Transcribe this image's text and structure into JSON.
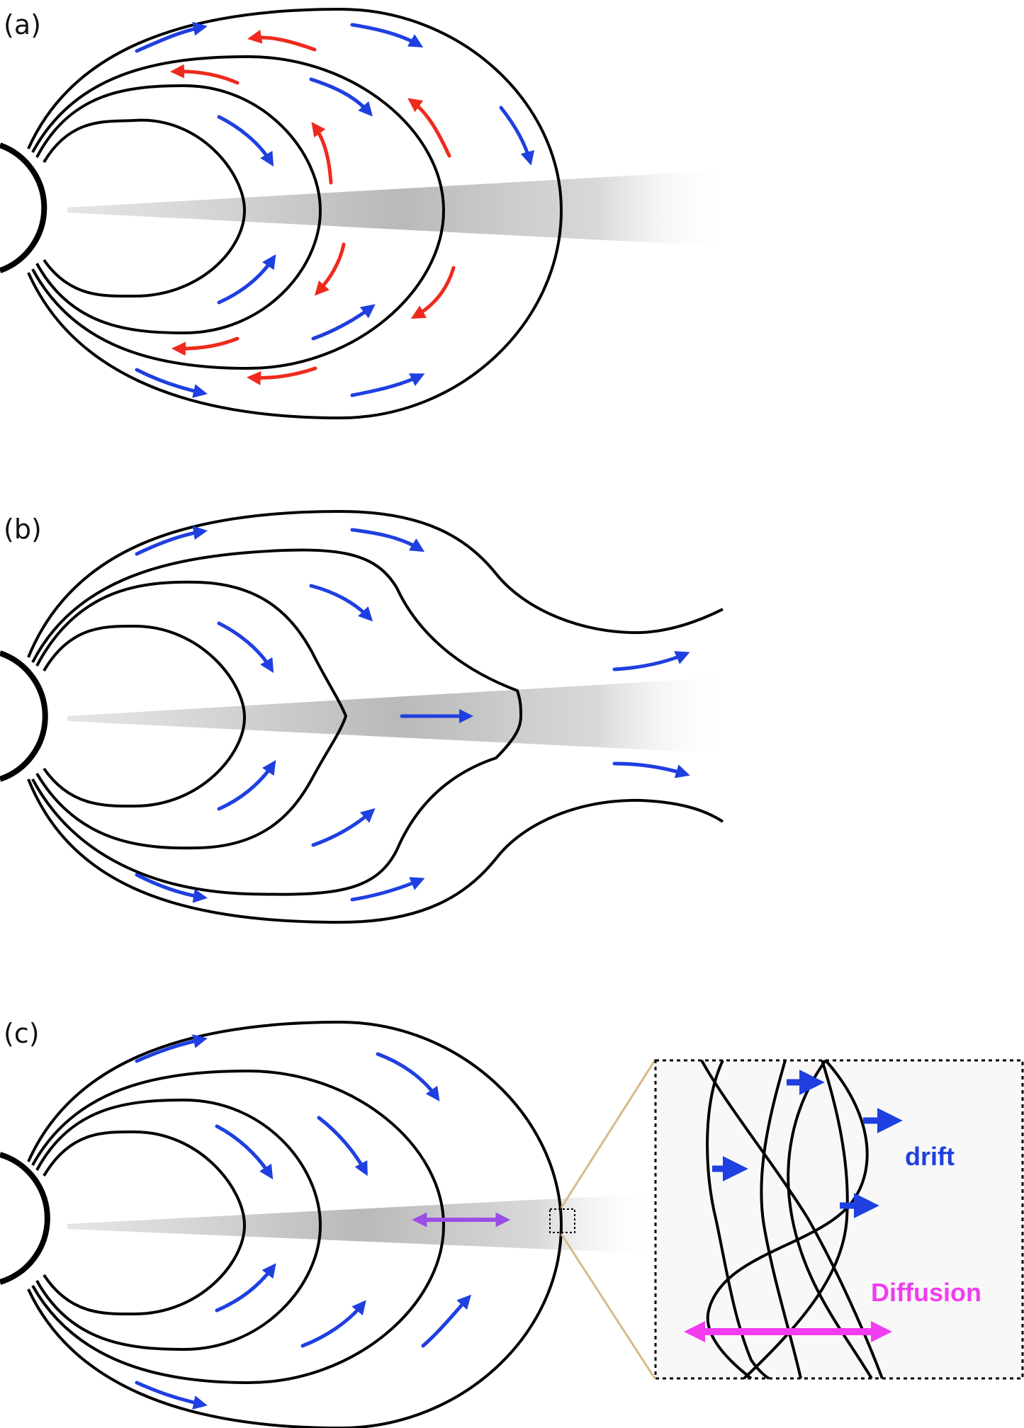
{
  "figure": {
    "panels": [
      {
        "id": "a",
        "label": "(a)"
      },
      {
        "id": "b",
        "label": "(b)"
      },
      {
        "id": "c",
        "label": "(c)"
      }
    ],
    "inset": {
      "drift_label": "drift",
      "diffusion_label": "Diffusion"
    },
    "colors": {
      "field_line": "#000000",
      "flow_blue": "#1f3fe0",
      "flow_red": "#ee2a1d",
      "diffusion_magenta": "#f23cf0",
      "diffusion_purple": "#9a4ee6",
      "zoom_lines": "#d9b98b",
      "current_sheet": "#b5b5b5"
    }
  }
}
